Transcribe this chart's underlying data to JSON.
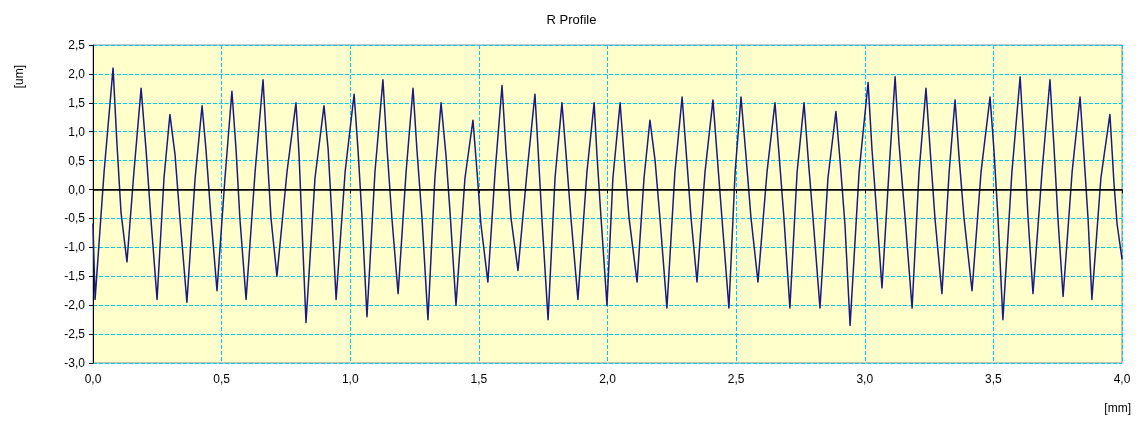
{
  "chart_data": {
    "type": "line",
    "title": "R Profile",
    "xlabel": "[mm]",
    "ylabel": "[um]",
    "x": [
      0.0,
      0.008,
      0.043,
      0.078,
      0.093,
      0.109,
      0.132,
      0.159,
      0.187,
      0.206,
      0.225,
      0.249,
      0.276,
      0.299,
      0.319,
      0.338,
      0.365,
      0.397,
      0.424,
      0.439,
      0.459,
      0.482,
      0.513,
      0.54,
      0.556,
      0.571,
      0.595,
      0.63,
      0.661,
      0.676,
      0.692,
      0.715,
      0.754,
      0.789,
      0.801,
      0.812,
      0.828,
      0.863,
      0.898,
      0.914,
      0.929,
      0.945,
      0.98,
      1.015,
      1.03,
      1.046,
      1.065,
      1.096,
      1.127,
      1.143,
      1.162,
      1.186,
      1.217,
      1.244,
      1.259,
      1.279,
      1.302,
      1.329,
      1.353,
      1.372,
      1.388,
      1.411,
      1.446,
      1.477,
      1.493,
      1.508,
      1.535,
      1.563,
      1.59,
      1.605,
      1.625,
      1.652,
      1.687,
      1.718,
      1.73,
      1.745,
      1.769,
      1.796,
      1.823,
      1.839,
      1.858,
      1.885,
      1.92,
      1.948,
      1.959,
      1.975,
      1.998,
      2.021,
      2.049,
      2.064,
      2.084,
      2.115,
      2.142,
      2.165,
      2.185,
      2.204,
      2.231,
      2.262,
      2.29,
      2.305,
      2.325,
      2.348,
      2.379,
      2.41,
      2.426,
      2.445,
      2.472,
      2.496,
      2.519,
      2.538,
      2.558,
      2.585,
      2.62,
      2.651,
      2.667,
      2.686,
      2.709,
      2.737,
      2.764,
      2.779,
      2.799,
      2.826,
      2.857,
      2.888,
      2.904,
      2.923,
      2.943,
      2.978,
      3.013,
      3.028,
      3.048,
      3.067,
      3.094,
      3.118,
      3.133,
      3.157,
      3.184,
      3.211,
      3.238,
      3.254,
      3.273,
      3.3,
      3.328,
      3.351,
      3.366,
      3.386,
      3.417,
      3.452,
      3.487,
      3.502,
      3.518,
      3.537,
      3.572,
      3.604,
      3.619,
      3.635,
      3.654,
      3.689,
      3.72,
      3.736,
      3.751,
      3.771,
      3.806,
      3.837,
      3.852,
      3.868,
      3.883,
      3.918,
      3.953,
      3.969,
      3.981,
      4.0
    ],
    "series": [
      {
        "color": "#1a1a80",
        "values": [
          -0.6,
          -1.9,
          0.3,
          2.1,
          0.8,
          -0.4,
          -1.25,
          0.3,
          1.75,
          0.7,
          -0.5,
          -1.9,
          0.2,
          1.3,
          0.6,
          -0.5,
          -1.95,
          0.2,
          1.45,
          0.7,
          -0.5,
          -1.75,
          0.2,
          1.7,
          0.7,
          -0.5,
          -1.9,
          0.3,
          1.9,
          0.7,
          -0.5,
          -1.5,
          0.3,
          1.5,
          0.6,
          -0.6,
          -2.3,
          0.2,
          1.45,
          0.7,
          -0.5,
          -1.9,
          0.3,
          1.65,
          0.7,
          -0.5,
          -2.2,
          0.3,
          1.9,
          0.7,
          -0.5,
          -1.8,
          0.3,
          1.75,
          0.7,
          -0.5,
          -2.25,
          0.2,
          1.5,
          0.6,
          -0.4,
          -2.0,
          0.2,
          1.2,
          0.3,
          -0.6,
          -1.6,
          0.3,
          1.8,
          0.7,
          -0.5,
          -1.4,
          0.3,
          1.65,
          0.7,
          -0.5,
          -2.25,
          0.2,
          1.5,
          0.6,
          -0.5,
          -1.9,
          0.3,
          1.5,
          0.6,
          -0.5,
          -2.0,
          0.2,
          1.5,
          0.6,
          -0.5,
          -1.6,
          0.2,
          1.2,
          0.5,
          -0.5,
          -2.05,
          0.3,
          1.6,
          0.7,
          -0.5,
          -1.6,
          0.3,
          1.55,
          0.6,
          -0.5,
          -2.05,
          0.3,
          1.6,
          0.6,
          -0.5,
          -1.6,
          0.3,
          1.5,
          0.6,
          -0.5,
          -2.05,
          0.3,
          1.5,
          0.6,
          -0.5,
          -2.05,
          0.2,
          1.35,
          0.5,
          -0.6,
          -2.35,
          0.3,
          1.85,
          0.7,
          -0.5,
          -1.7,
          0.3,
          1.95,
          0.8,
          -0.5,
          -2.05,
          0.3,
          1.75,
          0.7,
          -0.5,
          -1.8,
          0.3,
          1.55,
          0.6,
          -0.5,
          -1.75,
          0.3,
          1.6,
          0.7,
          -0.5,
          -2.25,
          0.3,
          1.95,
          0.8,
          -0.5,
          -1.8,
          0.3,
          1.9,
          0.7,
          -0.5,
          -1.85,
          0.3,
          1.6,
          0.6,
          -0.5,
          -1.9,
          0.2,
          1.3,
          0.1,
          -0.6,
          -1.2
        ]
      }
    ],
    "xlim": [
      0,
      4
    ],
    "xticks": [
      {
        "value": 0,
        "label": "0,0"
      },
      {
        "value": 0.5,
        "label": "0,5"
      },
      {
        "value": 1,
        "label": "1,0"
      },
      {
        "value": 1.5,
        "label": "1,5"
      },
      {
        "value": 2,
        "label": "2,0"
      },
      {
        "value": 2.5,
        "label": "2,5"
      },
      {
        "value": 3,
        "label": "3,0"
      },
      {
        "value": 3.5,
        "label": "3,5"
      },
      {
        "value": 4,
        "label": "4,0"
      }
    ],
    "ylim": [
      -3,
      2.5
    ],
    "yticks": [
      {
        "value": -3,
        "label": "-3,0"
      },
      {
        "value": -2.5,
        "label": "-2,5"
      },
      {
        "value": -2,
        "label": "-2,0"
      },
      {
        "value": -1.5,
        "label": "-1,5"
      },
      {
        "value": -1,
        "label": "-1,0"
      },
      {
        "value": -0.5,
        "label": "-0,5"
      },
      {
        "value": 0,
        "label": "0,0"
      },
      {
        "value": 0.5,
        "label": "0,5"
      },
      {
        "value": 1,
        "label": "1,0"
      },
      {
        "value": 1.5,
        "label": "1,5"
      },
      {
        "value": 2,
        "label": "2,0"
      },
      {
        "value": 2.5,
        "label": "2,5"
      }
    ],
    "ref_lines": [
      {
        "axis": "y",
        "value": 0,
        "color": "#000000"
      }
    ],
    "grid": true,
    "marker": "none",
    "line_style": "solid"
  }
}
